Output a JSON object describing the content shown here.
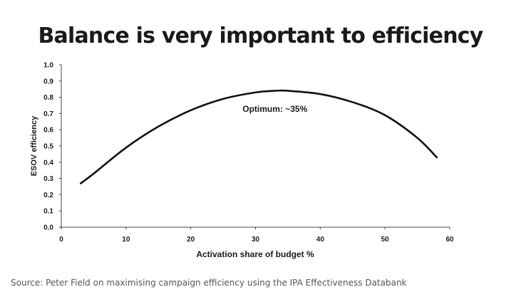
{
  "chart_data": {
    "type": "line",
    "title": "Balance is very important to efficiency",
    "xlabel": "Activation share of budget %",
    "ylabel": "ESOV efficiency",
    "xlim": [
      0,
      60
    ],
    "ylim": [
      0,
      1.0
    ],
    "x_ticks": [
      "0",
      "10",
      "20",
      "30",
      "40",
      "50",
      "60"
    ],
    "y_ticks": [
      "0.0",
      "0.1",
      "0.2",
      "0.3",
      "0.4",
      "0.5",
      "0.6",
      "0.7",
      "0.8",
      "0.9",
      "1.0"
    ],
    "series": [
      {
        "name": "ESOV efficiency",
        "x": [
          3,
          5,
          10,
          15,
          20,
          25,
          30,
          33,
          35,
          40,
          45,
          50,
          55,
          58
        ],
        "values": [
          0.27,
          0.33,
          0.49,
          0.62,
          0.72,
          0.79,
          0.83,
          0.84,
          0.84,
          0.82,
          0.77,
          0.69,
          0.55,
          0.43
        ]
      }
    ],
    "annotations": [
      {
        "text": "Optimum: ~35%",
        "x": 33,
        "y": 0.71
      }
    ],
    "grid": false
  },
  "source": "Source:  Peter Field on maximising campaign efficiency using the IPA Effectiveness Databank"
}
